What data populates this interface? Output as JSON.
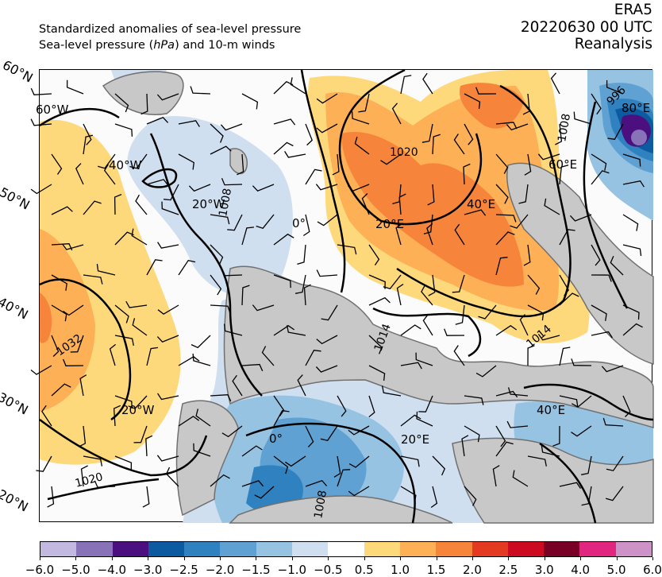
{
  "header": {
    "line1": "Standardized anomalies of sea-level pressure",
    "line2_prefix": "Sea-level pressure (",
    "line2_unit": "hPa",
    "line2_suffix": ") and 10-m winds",
    "source": "ERA5",
    "datetime": "20220630 00 UTC",
    "product": "Reanalysis"
  },
  "map": {
    "lat_labels": [
      "60°N",
      "50°N",
      "40°N",
      "30°N",
      "20°N"
    ],
    "lon_labels": [
      "60°W",
      "40°W",
      "20°W",
      "0°",
      "20°E",
      "40°E",
      "60°E",
      "80°E",
      "20°W",
      "0°",
      "20°E",
      "40°E"
    ],
    "isobar_labels": [
      "1020",
      "1008",
      "996",
      "1032",
      "1020",
      "1008",
      "1014",
      "1014",
      "1008"
    ],
    "colors": {
      "land": "#c8c8c8",
      "coast": "#707070",
      "isobar": "#000000"
    }
  },
  "colorbar": {
    "ticks": [
      "−6.0",
      "−5.0",
      "−4.0",
      "−3.0",
      "−2.5",
      "−2.0",
      "−1.5",
      "−1.0",
      "−0.5",
      "0.5",
      "1.0",
      "1.5",
      "2.0",
      "2.5",
      "3.0",
      "4.0",
      "5.0",
      "6.0"
    ],
    "colors": [
      "#c3b8e0",
      "#8873b8",
      "#4b0f80",
      "#0c5aa0",
      "#2f82bf",
      "#5ea1d2",
      "#97c3e3",
      "#cfdff0",
      "#ffffff",
      "#fed97c",
      "#fdb055",
      "#f7843b",
      "#e53a22",
      "#cc0b20",
      "#780125",
      "#e0267e",
      "#cd93c8"
    ]
  }
}
